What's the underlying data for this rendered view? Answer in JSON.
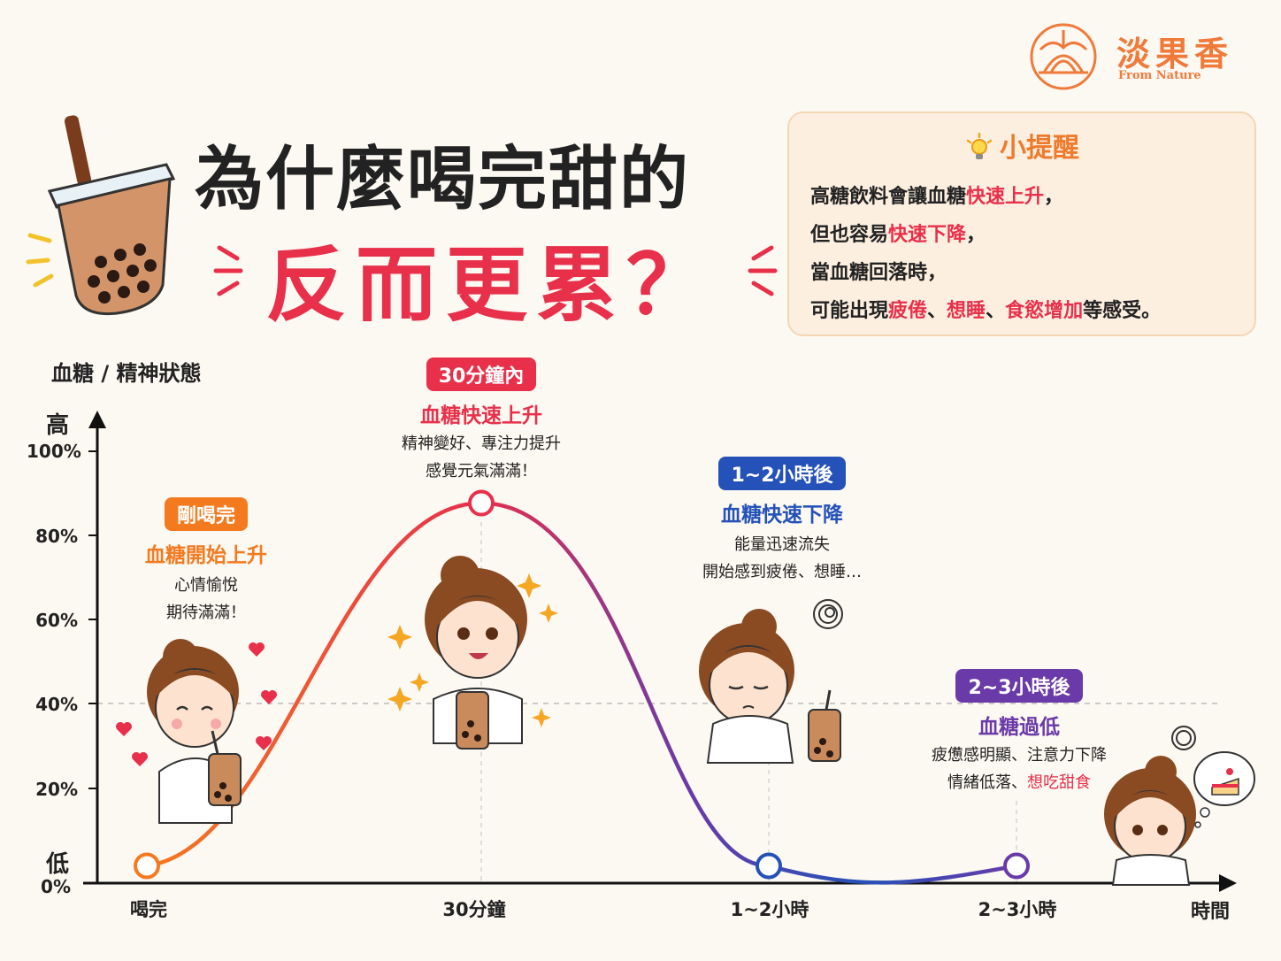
{
  "brand": {
    "name": "淡果香",
    "tagline": "From Nature"
  },
  "title": {
    "line1": "為什麼喝完甜的",
    "line2": "反而更累？"
  },
  "tip": {
    "title": "小提醒",
    "lines": [
      [
        {
          "t": "高糖飲料會讓血糖"
        },
        {
          "t": "快速上升",
          "hl": true
        },
        {
          "t": "，"
        }
      ],
      [
        {
          "t": "但也容易"
        },
        {
          "t": "快速下降",
          "hl": true
        },
        {
          "t": "，"
        }
      ],
      [
        {
          "t": "當血糖回落時，"
        }
      ],
      [
        {
          "t": "可能出現"
        },
        {
          "t": "疲倦",
          "hl": true
        },
        {
          "t": "、"
        },
        {
          "t": "想睡",
          "hl": true
        },
        {
          "t": "、"
        },
        {
          "t": "食慾增加",
          "hl": true
        },
        {
          "t": "等感受。"
        }
      ]
    ]
  },
  "stages": [
    {
      "badge": "剛喝完",
      "color": "#f47a20",
      "heading": "血糖開始上升",
      "lines": [
        "心情愉悅",
        "期待滿滿！"
      ]
    },
    {
      "badge": "30分鐘內",
      "color": "#e8304a",
      "heading": "血糖快速上升",
      "lines": [
        "精神變好、專注力提升",
        "感覺元氣滿滿！"
      ]
    },
    {
      "badge": "1~2小時後",
      "color": "#2452b8",
      "heading": "血糖快速下降",
      "lines": [
        "能量迅速流失",
        "開始感到疲倦、想睡…"
      ]
    },
    {
      "badge": "2~3小時後",
      "color": "#6a3aa8",
      "heading": "血糖過低",
      "lines": [
        "疲憊感明顯、注意力下降"
      ],
      "last_line": [
        {
          "t": "情緒低落、"
        },
        {
          "t": "想吃甜食",
          "hl": true
        }
      ]
    }
  ],
  "chart_data": {
    "type": "line",
    "ylabel": "血糖 / 精神狀態",
    "y_high_label": "高",
    "y_low_label": "低",
    "yticks": [
      "100%",
      "80%",
      "60%",
      "40%",
      "20%",
      "0%"
    ],
    "xlabel": "時間",
    "categories": [
      "喝完",
      "30分鐘",
      "1~2小時",
      "2~3小時"
    ],
    "values": [
      4,
      88,
      4,
      4
    ],
    "ylim": [
      0,
      100
    ],
    "grid": "dashed gridline at 40%",
    "gradient_colors": [
      "#f47a20",
      "#e8304a",
      "#6a3aa8",
      "#2452b8"
    ]
  }
}
